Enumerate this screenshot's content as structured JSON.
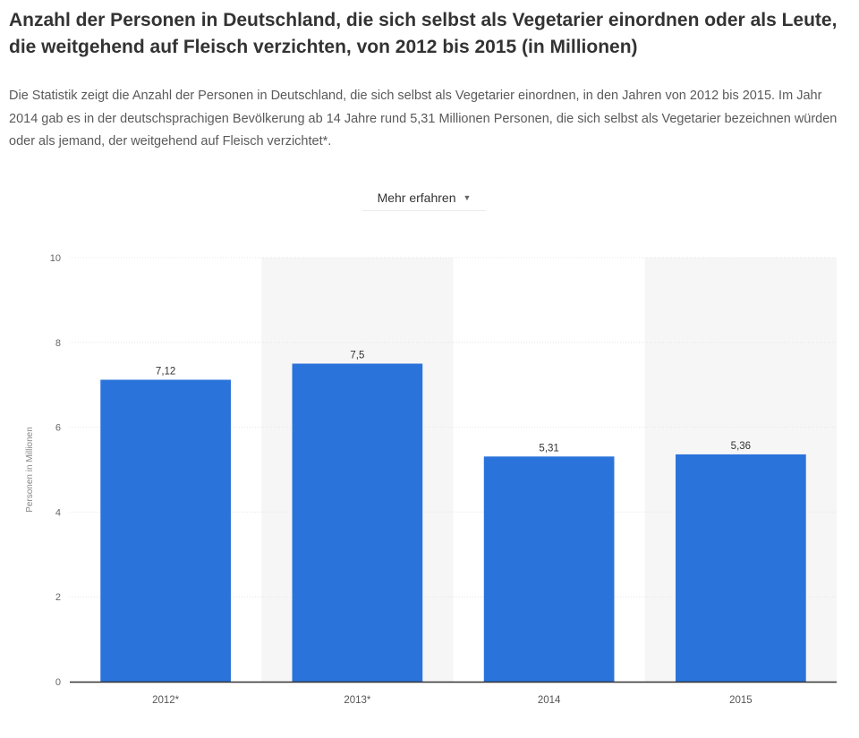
{
  "title": "Anzahl der Personen in Deutschland, die sich selbst als Vegetarier einordnen oder als Leute, die weitgehend auf Fleisch verzichten, von 2012 bis 2015 (in Millionen)",
  "description": "Die Statistik zeigt die Anzahl der Personen in Deutschland, die sich selbst als Vegetarier einordnen, in den Jahren von 2012 bis 2015. Im Jahr 2014 gab es in der deutschsprachigen Bevölkerung ab 14 Jahre rund 5,31 Millionen Personen, die sich selbst als Vegetarier bezeichnen würden oder als jemand, der weitgehend auf Fleisch verzichtet*.",
  "more_button": {
    "label": "Mehr erfahren",
    "icon": "caret-down-icon"
  },
  "colors": {
    "bar": "#2a73db",
    "band": "#f6f6f6",
    "grid": "#e6e6e6",
    "axis": "#333333"
  },
  "chart_data": {
    "type": "bar",
    "categories": [
      "2012*",
      "2013*",
      "2014",
      "2015"
    ],
    "values": [
      7.12,
      7.5,
      5.31,
      5.36
    ],
    "value_labels": [
      "7,12",
      "7,5",
      "5,31",
      "5,36"
    ],
    "ylabel": "Personen in Millionen",
    "xlabel": "",
    "ylim": [
      0,
      10
    ],
    "yticks": [
      0,
      2,
      4,
      6,
      8,
      10
    ],
    "grid": true,
    "alternating_bands": true
  }
}
